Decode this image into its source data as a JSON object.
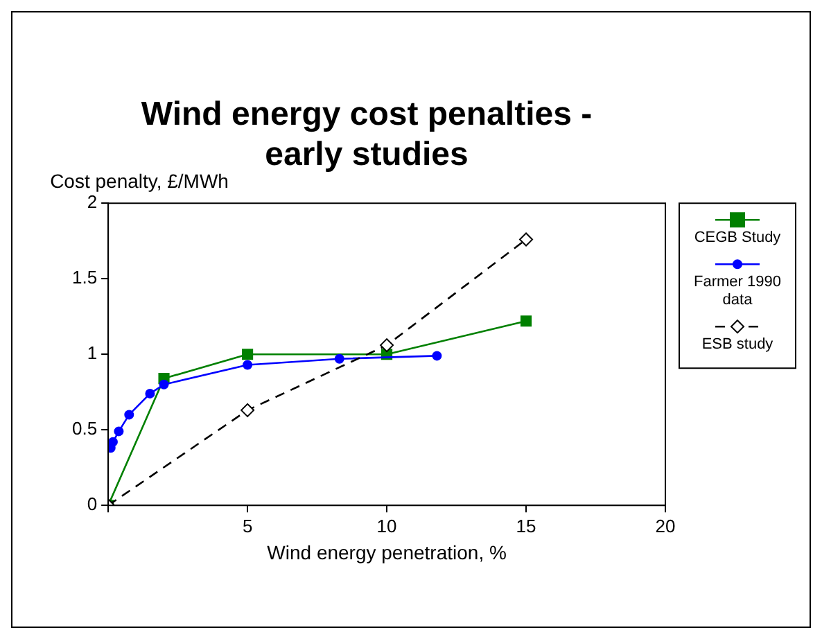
{
  "chart_data": {
    "type": "line",
    "title": "Wind energy cost penalties - early studies",
    "xlabel": "Wind energy penetration, %",
    "ylabel": "Cost penalty, £/MWh",
    "xlim": [
      0,
      20
    ],
    "xticks": [
      {
        "value": 0,
        "label": null
      },
      5,
      10,
      15,
      20
    ],
    "ylim": [
      0,
      2
    ],
    "yticks": [
      0,
      0.5,
      1,
      1.5,
      2
    ],
    "grid": false,
    "legend": "right",
    "series": [
      {
        "name": "CEGB Study",
        "color": "#008000",
        "marker": "square",
        "line_style": "solid",
        "x": [
          0,
          2,
          5,
          10,
          15
        ],
        "values": [
          0,
          0.84,
          1.0,
          1.0,
          1.22
        ]
      },
      {
        "name": "Farmer 1990 data",
        "color": "#0000ff",
        "marker": "circle",
        "line_style": "solid",
        "x": [
          0.09,
          0.17,
          0.38,
          0.75,
          1.5,
          2,
          5,
          8.3,
          11.8
        ],
        "values": [
          0.38,
          0.42,
          0.49,
          0.6,
          0.74,
          0.8,
          0.93,
          0.97,
          0.99
        ]
      },
      {
        "name": "ESB study",
        "color": "#000000",
        "marker": "diamond",
        "line_style": "dashed",
        "x": [
          0,
          5,
          10,
          15
        ],
        "values": [
          0,
          0.63,
          1.06,
          1.76
        ]
      }
    ]
  }
}
